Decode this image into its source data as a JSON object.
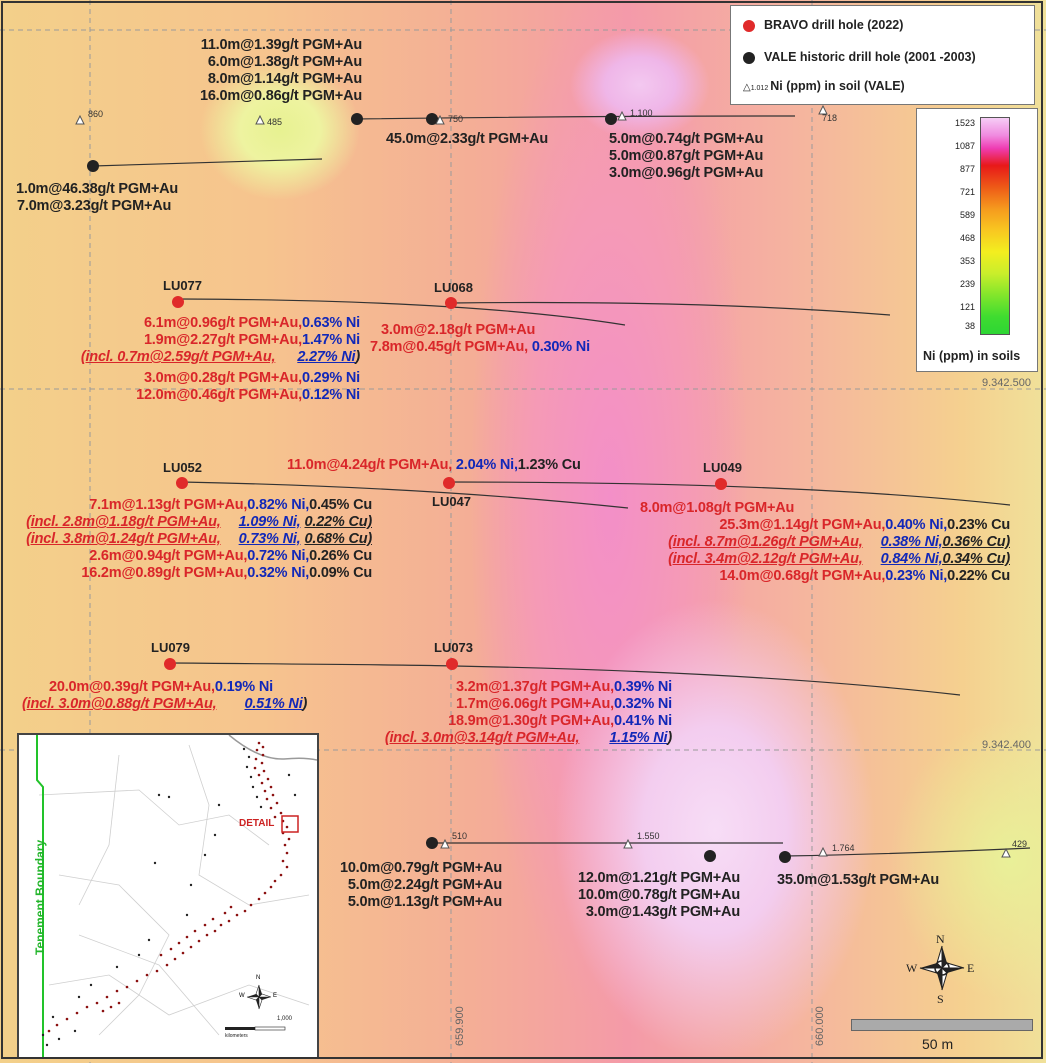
{
  "legend": {
    "bravo_label": "BRAVO drill hole (2022)",
    "vale_label": "VALE historic drill hole (2001 -2003)",
    "soil_symbol_value": "1.012",
    "soil_label": "Ni (ppm) in soil (VALE)",
    "bravo_color": "#e02a2a",
    "vale_color": "#222222"
  },
  "color_scale": {
    "title": "Ni (ppm) in soils",
    "ticks": [
      "1523",
      "1087",
      "877",
      "721",
      "589",
      "468",
      "353",
      "239",
      "121",
      "38"
    ]
  },
  "soil_samples": [
    "860",
    "485",
    "750",
    "1.100",
    "718",
    "510",
    "1.550",
    "1.764",
    "429"
  ],
  "coords": {
    "n1": "9.342.500",
    "n2": "9.342.400",
    "e1": "659.900",
    "e2": "660.000"
  },
  "holes": {
    "lu077": "LU077",
    "lu068": "LU068",
    "lu052": "LU052",
    "lu047": "LU047",
    "lu049": "LU049",
    "lu079": "LU079",
    "lu073": "LU073"
  },
  "vale_results": {
    "top_a": [
      "11.0m@1.39g/t PGM+Au",
      "6.0m@1.38g/t PGM+Au",
      "8.0m@1.14g/t PGM+Au",
      "16.0m@0.86g/t PGM+Au"
    ],
    "top_b": "45.0m@2.33g/t PGM+Au",
    "top_c": [
      "5.0m@0.74g/t PGM+Au",
      "5.0m@0.87g/t PGM+Au",
      "3.0m@0.96g/t PGM+Au"
    ],
    "left": [
      "1.0m@46.38g/t PGM+Au",
      "7.0m@3.23g/t PGM+Au"
    ],
    "bottom_a": [
      "10.0m@0.79g/t PGM+Au",
      "5.0m@2.24g/t PGM+Au",
      "5.0m@1.13g/t PGM+Au"
    ],
    "bottom_b": [
      "12.0m@1.21g/t PGM+Au",
      "10.0m@0.78g/t PGM+Au",
      "3.0m@1.43g/t PGM+Au"
    ],
    "bottom_c": "35.0m@1.53g/t PGM+Au"
  },
  "lu077": {
    "l1a": "6.1m@0.96g/t PGM+Au,",
    "l1b": "0.63% Ni",
    "l2a": "1.9m@2.27g/t PGM+Au,",
    "l2b": "1.47% Ni",
    "l3a": "(incl. 0.7m@2.59g/t PGM+Au,",
    "l3b": "2.27% Ni",
    "l3c": ")",
    "l4a": "3.0m@0.28g/t PGM+Au,",
    "l4b": "0.29% Ni",
    "l5a": "12.0m@0.46g/t PGM+Au,",
    "l5b": "0.12% Ni"
  },
  "lu068": {
    "l1": "3.0m@2.18g/t PGM+Au",
    "l2a": "7.8m@0.45g/t PGM+Au,",
    "l2b": "0.30% Ni"
  },
  "lu047": {
    "l1a": "11.0m@4.24g/t PGM+Au,",
    "l1b": "2.04% Ni,",
    "l1c": "1.23% Cu"
  },
  "lu052": {
    "l1a": "7.1m@1.13g/t PGM+Au,",
    "l1b": "0.82% Ni,",
    "l1c": "0.45% Cu",
    "l2a": "(incl. 2.8m@1.18g/t PGM+Au,",
    "l2b": "1.09% Ni,",
    "l2c": "0.22% Cu)",
    "l3a": "(incl. 3.8m@1.24g/t PGM+Au,",
    "l3b": "0.73% Ni,",
    "l3c": "0.68% Cu)",
    "l4a": "2.6m@0.94g/t PGM+Au,",
    "l4b": "0.72% Ni,",
    "l4c": "0.26% Cu",
    "l5a": "16.2m@0.89g/t PGM+Au,",
    "l5b": "0.32% Ni,",
    "l5c": "0.09% Cu"
  },
  "lu049": {
    "l1": "8.0m@1.08g/t PGM+Au",
    "l2a": "25.3m@1.14g/t PGM+Au,",
    "l2b": "0.40% Ni,",
    "l2c": "0.23% Cu",
    "l3a": "(incl. 8.7m@1.26g/t PGM+Au,",
    "l3b": "0.38% Ni,",
    "l3c": "0.36% Cu)",
    "l4a": "(incl. 3.4m@2.12g/t PGM+Au,",
    "l4b": "0.84% Ni,",
    "l4c": "0.34% Cu)",
    "l5a": "14.0m@0.68g/t PGM+Au,",
    "l5b": "0.23% Ni,",
    "l5c": "0.22% Cu"
  },
  "lu079": {
    "l1a": "20.0m@0.39g/t PGM+Au,",
    "l1b": "0.19% Ni",
    "l2a": "(incl. 3.0m@0.88g/t PGM+Au,",
    "l2b": "0.51% Ni",
    "l2c": ")"
  },
  "lu073": {
    "l1a": "3.2m@1.37g/t PGM+Au,",
    "l1b": "0.39% Ni",
    "l2a": "1.7m@6.06g/t PGM+Au,",
    "l2b": "0.32% Ni",
    "l3a": "18.9m@1.30g/t PGM+Au,",
    "l3b": "0.41% Ni",
    "l4a": "(incl. 3.0m@3.14g/t PGM+Au,",
    "l4b": "1.15% Ni",
    "l4c": ")"
  },
  "inset": {
    "boundary_label": "Tenement Boundary",
    "detail_label": "DETAIL",
    "scale_end": "1,000",
    "scale_unit": "kilometers"
  },
  "compass": {
    "n": "N",
    "s": "S",
    "e": "E",
    "w": "W"
  },
  "scale_bar": {
    "label": "50 m"
  }
}
